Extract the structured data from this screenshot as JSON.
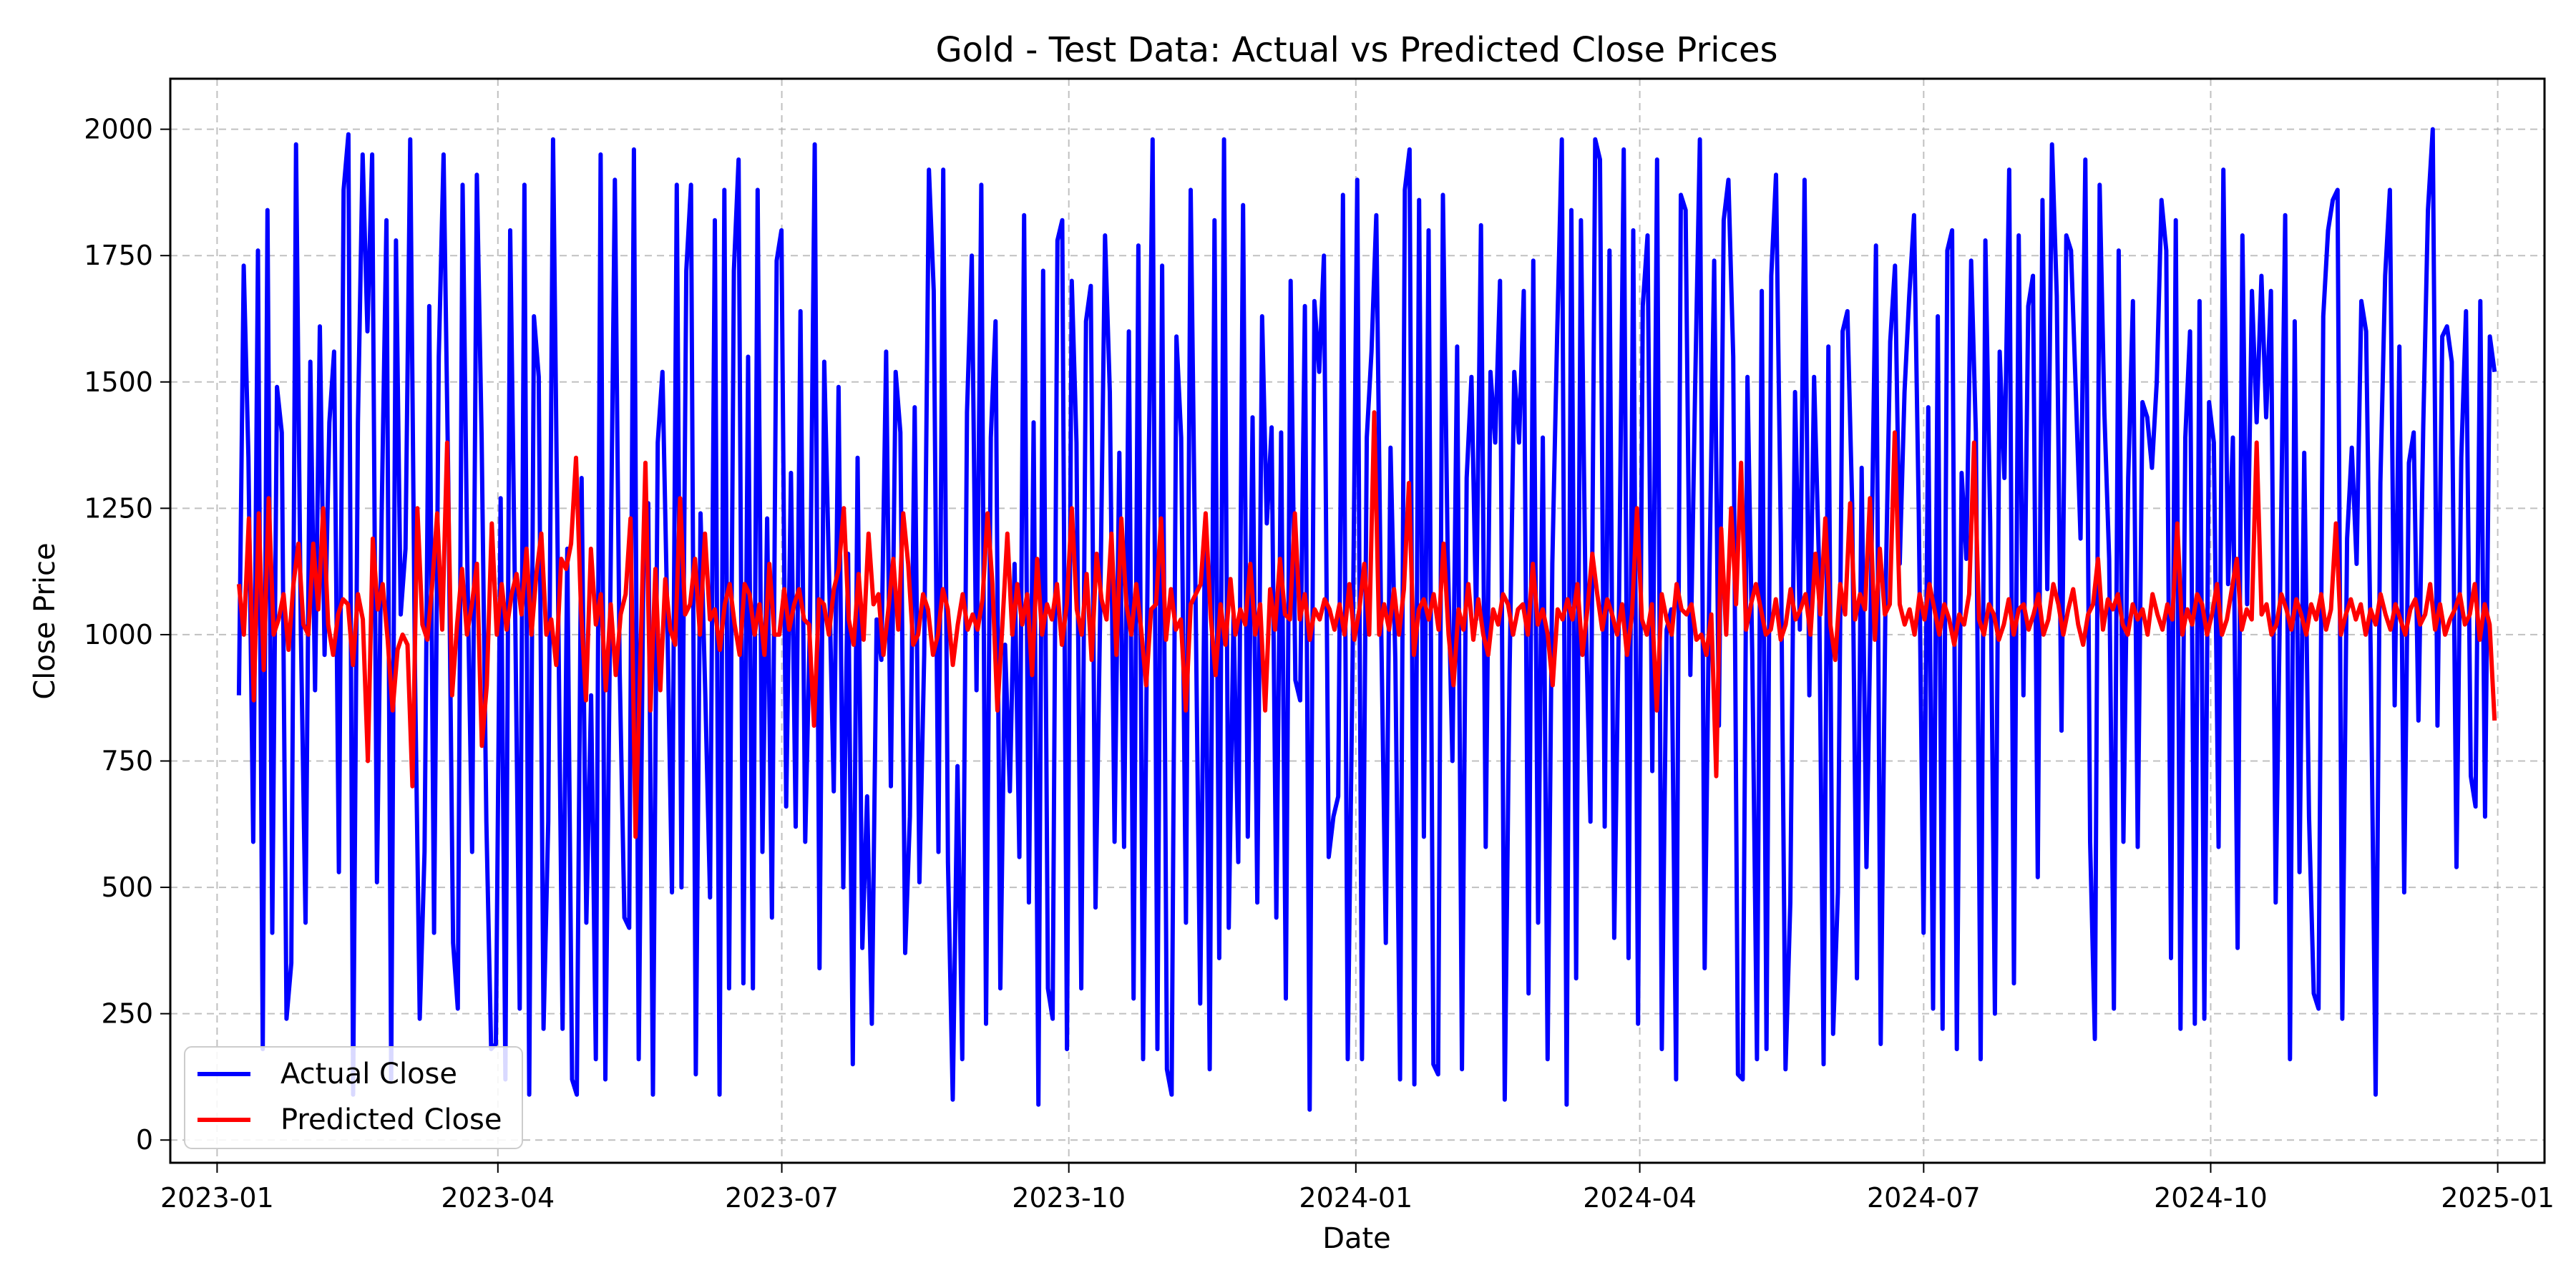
{
  "chart_data": {
    "type": "line",
    "title": "Gold - Test Data: Actual vs Predicted Close Prices",
    "xlabel": "Date",
    "ylabel": "Close Price",
    "xlim": [
      "2022-12-17",
      "2025-01-16"
    ],
    "ylim": [
      -45,
      2100
    ],
    "x_ticks": [
      "2023-01",
      "2023-04",
      "2023-07",
      "2023-10",
      "2024-01",
      "2024-04",
      "2024-07",
      "2024-10",
      "2025-01"
    ],
    "y_ticks": [
      0,
      250,
      500,
      750,
      1000,
      1250,
      1500,
      1750,
      2000
    ],
    "grid": true,
    "legend": "lower-left",
    "x_start": "2023-01-08",
    "x_end": "2024-12-31",
    "series": [
      {
        "name": "Actual Close",
        "color": "#0000ff",
        "values": [
          880,
          1730,
          1350,
          590,
          1760,
          180,
          1840,
          410,
          1490,
          1400,
          240,
          350,
          1970,
          1010,
          430,
          1540,
          890,
          1610,
          960,
          1420,
          1560,
          530,
          1880,
          1990,
          90,
          1420,
          1950,
          1600,
          1950,
          510,
          1240,
          1820,
          120,
          1780,
          1040,
          1170,
          1980,
          920,
          240,
          570,
          1650,
          410,
          1550,
          1950,
          1300,
          390,
          260,
          1890,
          1140,
          570,
          1910,
          1390,
          630,
          180,
          190,
          1270,
          120,
          1800,
          1090,
          260,
          1890,
          90,
          1630,
          1510,
          220,
          630,
          1980,
          1140,
          220,
          1170,
          120,
          90,
          1310,
          430,
          880,
          160,
          1950,
          120,
          1040,
          1900,
          930,
          440,
          420,
          1960,
          160,
          1140,
          1260,
          90,
          1380,
          1520,
          1040,
          490,
          1890,
          500,
          1720,
          1890,
          130,
          1240,
          880,
          480,
          1820,
          90,
          1880,
          300,
          1720,
          1940,
          310,
          1550,
          300,
          1880,
          570,
          1230,
          440,
          1740,
          1800,
          660,
          1320,
          620,
          1640,
          590,
          1030,
          1970,
          340,
          1540,
          1120,
          690,
          1490,
          500,
          1160,
          150,
          1350,
          380,
          680,
          230,
          1030,
          950,
          1560,
          700,
          1520,
          1400,
          370,
          640,
          1450,
          510,
          960,
          1920,
          1680,
          570,
          1920,
          550,
          80,
          740,
          160,
          1440,
          1750,
          890,
          1890,
          230,
          1390,
          1620,
          300,
          980,
          690,
          1140,
          560,
          1830,
          470,
          1420,
          70,
          1720,
          300,
          240,
          1780,
          1820,
          180,
          1700,
          1380,
          300,
          1620,
          1690,
          460,
          1060,
          1790,
          1480,
          590,
          1360,
          580,
          1600,
          280,
          1770,
          160,
          1190,
          1980,
          180,
          1730,
          140,
          90,
          1590,
          1390,
          430,
          1880,
          1090,
          270,
          1210,
          140,
          1820,
          360,
          1980,
          420,
          1040,
          550,
          1850,
          600,
          1430,
          470,
          1630,
          1220,
          1410,
          440,
          1400,
          280,
          1700,
          910,
          870,
          1650,
          60,
          1660,
          1520,
          1750,
          560,
          640,
          680,
          1870,
          160,
          930,
          1900,
          160,
          1390,
          1560,
          1830,
          1040,
          390,
          1370,
          950,
          120,
          1880,
          1960,
          110,
          1860,
          600,
          1800,
          150,
          130,
          1870,
          1170,
          750,
          1570,
          140,
          1310,
          1510,
          1030,
          1810,
          580,
          1520,
          1380,
          1700,
          80,
          920,
          1520,
          1380,
          1680,
          290,
          1740,
          430,
          1390,
          160,
          1140,
          1590,
          1980,
          70,
          1840,
          320,
          1820,
          1050,
          630,
          1980,
          1940,
          620,
          1760,
          400,
          1060,
          1960,
          360,
          1800,
          230,
          1650,
          1790,
          730,
          1940,
          180,
          1010,
          1050,
          120,
          1870,
          1840,
          920,
          1490,
          1980,
          340,
          1110,
          1740,
          820,
          1820,
          1900,
          1550,
          130,
          120,
          1510,
          960,
          160,
          1680,
          180,
          1710,
          1910,
          1200,
          140,
          470,
          1480,
          1010,
          1900,
          880,
          1510,
          1150,
          150,
          1570,
          210,
          490,
          1600,
          1640,
          1260,
          320,
          1330,
          540,
          1110,
          1770,
          190,
          1070,
          1580,
          1730,
          1140,
          1480,
          1670,
          1830,
          1240,
          410,
          1450,
          260,
          1630,
          220,
          1760,
          1800,
          180,
          1320,
          1150,
          1740,
          1400,
          160,
          1780,
          1220,
          250,
          1560,
          1310,
          1920,
          310,
          1790,
          880,
          1650,
          1710,
          520,
          1860,
          1090,
          1970,
          1670,
          810,
          1790,
          1760,
          1480,
          1190,
          1940,
          590,
          200,
          1890,
          1440,
          1150,
          260,
          1760,
          590,
          1310,
          1660,
          580,
          1460,
          1430,
          1330,
          1500,
          1860,
          1760,
          360,
          1820,
          220,
          1390,
          1600,
          230,
          1660,
          240,
          1460,
          1380,
          580,
          1920,
          1100,
          1390,
          380,
          1790,
          1060,
          1680,
          1420,
          1710,
          1430,
          1680,
          470,
          1130,
          1830,
          160,
          1620,
          530,
          1360,
          640,
          290,
          260,
          1630,
          1800,
          1860,
          1880,
          240,
          1190,
          1370,
          1140,
          1660,
          1600,
          940,
          90,
          1300,
          1710,
          1880,
          860,
          1570,
          490,
          1340,
          1400,
          830,
          1410,
          1840,
          2000,
          820,
          1590,
          1610,
          1540,
          540,
          1350,
          1640,
          720,
          660,
          1660,
          640,
          1590,
          1520
        ]
      },
      {
        "name": "Predicted Close",
        "color": "#ff0000",
        "values": [
          1100,
          1000,
          1230,
          870,
          1240,
          930,
          1270,
          1000,
          1030,
          1080,
          970,
          1100,
          1180,
          1020,
          1000,
          1180,
          1050,
          1250,
          1020,
          960,
          1040,
          1070,
          1060,
          940,
          1080,
          1030,
          750,
          1190,
          1050,
          1100,
          990,
          850,
          970,
          1000,
          980,
          700,
          1250,
          1020,
          990,
          1100,
          1240,
          1010,
          1380,
          880,
          1020,
          1130,
          1000,
          1060,
          1140,
          780,
          900,
          1220,
          1000,
          1100,
          1010,
          1080,
          1120,
          1040,
          1170,
          1000,
          1120,
          1200,
          1000,
          1030,
          940,
          1150,
          1130,
          1180,
          1350,
          1050,
          870,
          1170,
          1020,
          1080,
          890,
          1060,
          920,
          1040,
          1080,
          1230,
          600,
          960,
          1340,
          850,
          1130,
          890,
          1110,
          1010,
          980,
          1270,
          1040,
          1060,
          1150,
          1000,
          1200,
          1030,
          1050,
          970,
          1060,
          1100,
          1020,
          960,
          1100,
          1080,
          1000,
          1060,
          960,
          1140,
          1000,
          1000,
          1090,
          1010,
          1060,
          1090,
          1030,
          1020,
          820,
          1070,
          1060,
          1000,
          1090,
          1130,
          1250,
          1030,
          980,
          1120,
          990,
          1200,
          1060,
          1080,
          960,
          1050,
          1150,
          1010,
          1240,
          1140,
          980,
          1000,
          1080,
          1050,
          960,
          1000,
          1090,
          1050,
          940,
          1020,
          1080,
          1010,
          1040,
          1010,
          1070,
          1240,
          1100,
          850,
          1020,
          1200,
          1000,
          1100,
          1020,
          1080,
          920,
          1150,
          1000,
          1060,
          1030,
          1100,
          980,
          1060,
          1250,
          1050,
          1000,
          1120,
          950,
          1160,
          1070,
          1030,
          1200,
          960,
          1230,
          1060,
          1000,
          1100,
          1010,
          900,
          1050,
          1060,
          1230,
          990,
          1090,
          1010,
          1030,
          850,
          1060,
          1080,
          1100,
          1240,
          1040,
          920,
          1060,
          980,
          1110,
          1000,
          1050,
          1020,
          1140,
          1000,
          1060,
          850,
          1090,
          1010,
          1150,
          1040,
          1030,
          1240,
          1030,
          1080,
          990,
          1050,
          1030,
          1070,
          1050,
          1010,
          1060,
          1000,
          1100,
          990,
          1050,
          1140,
          1000,
          1440,
          1000,
          1060,
          1010,
          1090,
          1000,
          1090,
          1300,
          960,
          1050,
          1070,
          1030,
          1080,
          1010,
          1180,
          1000,
          900,
          1050,
          1010,
          1100,
          990,
          1070,
          1000,
          960,
          1050,
          1020,
          1080,
          1060,
          1000,
          1050,
          1060,
          1000,
          1140,
          1020,
          1050,
          1000,
          900,
          1050,
          1030,
          1070,
          1030,
          1100,
          960,
          1050,
          1160,
          1080,
          1010,
          1070,
          1040,
          1000,
          1060,
          960,
          1040,
          1250,
          1030,
          1000,
          1060,
          850,
          1080,
          1030,
          1000,
          1100,
          1050,
          1040,
          1060,
          990,
          1000,
          960,
          1040,
          720,
          1210,
          1000,
          1250,
          1060,
          1340,
          1010,
          1060,
          1100,
          1050,
          1000,
          1010,
          1070,
          990,
          1020,
          1090,
          1030,
          1050,
          1080,
          1000,
          1160,
          1040,
          1230,
          1020,
          950,
          1100,
          1040,
          1260,
          1030,
          1080,
          1050,
          1270,
          990,
          1170,
          1040,
          1060,
          1400,
          1060,
          1020,
          1050,
          1000,
          1080,
          1030,
          1100,
          1050,
          1000,
          1060,
          1030,
          980,
          1040,
          1020,
          1080,
          1380,
          1030,
          1000,
          1060,
          1040,
          990,
          1020,
          1070,
          1000,
          1050,
          1060,
          1010,
          1040,
          1080,
          1000,
          1030,
          1100,
          1060,
          1000,
          1050,
          1090,
          1020,
          980,
          1040,
          1060,
          1150,
          1010,
          1070,
          1050,
          1080,
          1020,
          1000,
          1060,
          1030,
          1050,
          1000,
          1080,
          1040,
          1010,
          1060,
          1030,
          1220,
          1000,
          1050,
          1020,
          1080,
          1060,
          1000,
          1040,
          1100,
          1000,
          1030,
          1090,
          1150,
          1010,
          1050,
          1030,
          1380,
          1040,
          1060,
          1000,
          1020,
          1080,
          1050,
          1010,
          1070,
          1040,
          1000,
          1060,
          1030,
          1080,
          1010,
          1050,
          1220,
          1000,
          1040,
          1070,
          1030,
          1060,
          1000,
          1050,
          1020,
          1080,
          1040,
          1010,
          1060,
          1030,
          1000,
          1050,
          1070,
          1020,
          1040,
          1100,
          1010,
          1060,
          1000,
          1030,
          1050,
          1080,
          1020,
          1040,
          1100,
          990,
          1060,
          1020,
          830
        ]
      }
    ]
  }
}
